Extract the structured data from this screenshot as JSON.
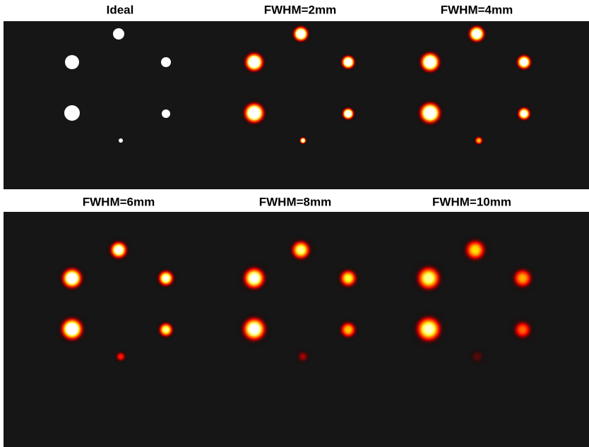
{
  "panels": [
    {
      "title": "Ideal"
    },
    {
      "title": "FWHM=2mm"
    },
    {
      "title": "FWHM=4mm"
    },
    {
      "title": "FWHM=6mm"
    },
    {
      "title": "FWHM=8mm"
    },
    {
      "title": "FWHM=10mm"
    }
  ]
}
